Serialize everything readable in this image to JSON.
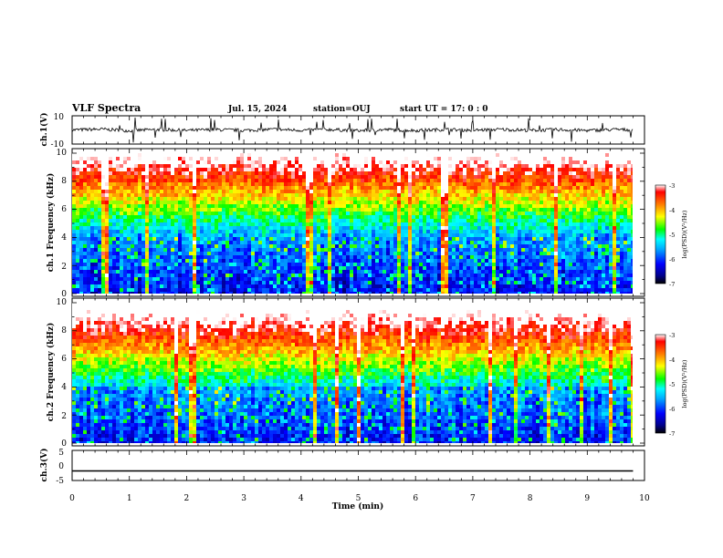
{
  "header": {
    "title": "VLF Spectra",
    "date": "Jul. 15, 2024",
    "station": "station=OUJ",
    "start": "start UT =  17: 0 : 0"
  },
  "colors": {
    "ch1_trace": "#000000",
    "ch3_trace": "#000000",
    "spectrogram_scale": [
      "#000000",
      "#00008b",
      "#0000ff",
      "#00aaff",
      "#00ffff",
      "#00ff00",
      "#ffff00",
      "#ff8000",
      "#ff0000",
      "#ffffff"
    ]
  },
  "chart_data": [
    {
      "type": "line",
      "name": "ch1-waveform",
      "ylabel": "ch.1(V)",
      "xlim": [
        0,
        10
      ],
      "ylim": [
        -10,
        10
      ],
      "yticks": [
        "10",
        "-10"
      ],
      "x": [
        0,
        0.5,
        1,
        1.5,
        2,
        2.5,
        3,
        3.5,
        4,
        4.5,
        5,
        5.5,
        6,
        6.5,
        7,
        7.5,
        8,
        8.5,
        9,
        9.5,
        9.8
      ],
      "y": [
        0,
        0.5,
        -0.5,
        0.3,
        -0.4,
        0.2,
        -0.3,
        0.4,
        -0.2,
        0.3,
        -0.5,
        0.2,
        -0.4,
        0.3,
        -0.2,
        0.4,
        -0.3,
        0.2,
        -0.4,
        0.3,
        0
      ]
    },
    {
      "type": "heatmap",
      "name": "ch1-spectrogram",
      "ylabel": "ch.1 Frequency (kHz)",
      "xlim": [
        0,
        10
      ],
      "ylim": [
        0,
        10
      ],
      "yticks": [
        "0",
        "2",
        "4",
        "6",
        "8",
        "10"
      ],
      "colorbar": {
        "label": "log(PSD)(V²/Hz)",
        "range": [
          -7,
          -3
        ],
        "ticks": [
          "-3",
          "-4",
          "-5",
          "-6",
          "-7"
        ]
      }
    },
    {
      "type": "heatmap",
      "name": "ch2-spectrogram",
      "ylabel": "ch.2 Frequency (kHz)",
      "xlim": [
        0,
        10
      ],
      "ylim": [
        0,
        10
      ],
      "yticks": [
        "0",
        "2",
        "4",
        "6",
        "8",
        "10"
      ],
      "colorbar": {
        "label": "log(PSD)(V²/Hz)",
        "range": [
          -7,
          -3
        ],
        "ticks": [
          "-3",
          "-4",
          "-5",
          "-6",
          "-7"
        ]
      }
    },
    {
      "type": "line",
      "name": "ch3-waveform",
      "ylabel": "ch.3(V)",
      "xlim": [
        0,
        10
      ],
      "ylim": [
        -5,
        5
      ],
      "yticks": [
        "5",
        "0",
        "-5"
      ],
      "x": [
        0,
        9.8
      ],
      "y": [
        -1.8,
        -1.8
      ]
    }
  ],
  "xaxis": {
    "label": "Time (min)",
    "ticks": [
      "0",
      "1",
      "2",
      "3",
      "4",
      "5",
      "6",
      "7",
      "8",
      "9",
      "10"
    ]
  }
}
